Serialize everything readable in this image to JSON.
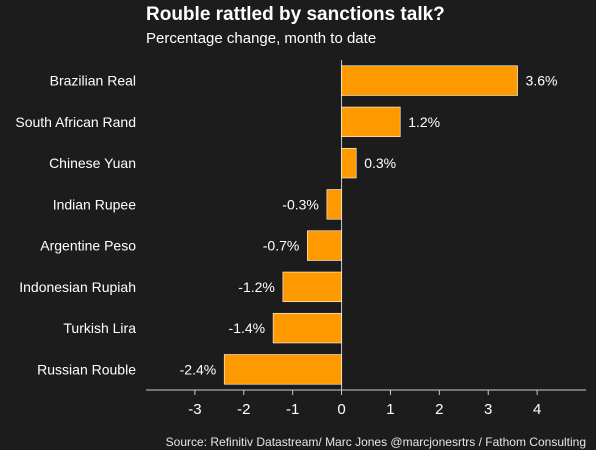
{
  "header": {
    "title": "Rouble rattled by sanctions talk?",
    "subtitle": "Percentage change, month to date"
  },
  "footer": {
    "source": "Source: Refinitiv Datastream/ Marc Jones @marcjonesrtrs / Fathom Consulting"
  },
  "colors": {
    "bar": "#ff9900",
    "background": "#1c1c1c",
    "axis": "#cccccc",
    "text": "#ffffff"
  },
  "chart_data": {
    "type": "bar",
    "orientation": "horizontal",
    "title": "Rouble rattled by sanctions talk?",
    "subtitle": "Percentage change, month to date",
    "categories": [
      "Brazilian Real",
      "South African Rand",
      "Chinese Yuan",
      "Indian Rupee",
      "Argentine Peso",
      "Indonesian Rupiah",
      "Turkish Lira",
      "Russian Rouble"
    ],
    "values": [
      3.6,
      1.2,
      0.3,
      -0.3,
      -0.7,
      -1.2,
      -1.4,
      -2.4
    ],
    "value_labels": [
      "3.6%",
      "1.2%",
      "0.3%",
      "-0.3%",
      "-0.7%",
      "-1.2%",
      "-1.4%",
      "-2.4%"
    ],
    "xlim": [
      -4,
      5
    ],
    "x_ticks": [
      -3,
      -2,
      -1,
      0,
      1,
      2,
      3,
      4
    ],
    "x_tick_labels": [
      "-3",
      "-2",
      "-1",
      "0",
      "1",
      "2",
      "3",
      "4"
    ],
    "xlabel": "",
    "ylabel": "",
    "grid": false,
    "legend": "none"
  }
}
